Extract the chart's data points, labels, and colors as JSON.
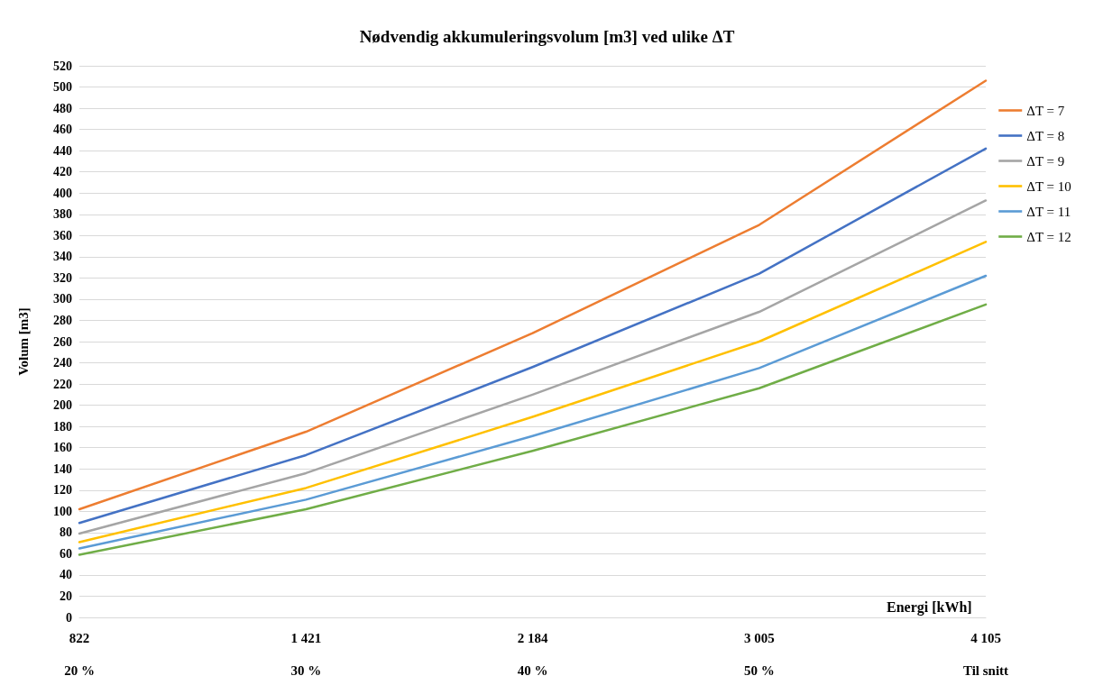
{
  "chart_data": {
    "type": "line",
    "title": "Nødvendig akkumuleringsvolum [m3] ved ulike ΔT",
    "xlabel": "Energi [kWh]",
    "ylabel": "Volum [m3]",
    "categories": [
      "822\n\n20 %",
      "1 421\n\n30 %",
      "2 184\n\n40 %",
      "3 005\n\n50 %",
      "4 105\n\nTil snitt"
    ],
    "series": [
      {
        "name": "ΔT = 7",
        "color": "#ed7d31",
        "values": [
          102,
          175,
          268,
          370,
          506
        ]
      },
      {
        "name": "ΔT = 8",
        "color": "#4472c4",
        "values": [
          89,
          153,
          236,
          324,
          442
        ]
      },
      {
        "name": "ΔT = 9",
        "color": "#a5a5a5",
        "values": [
          79,
          136,
          210,
          288,
          393
        ]
      },
      {
        "name": "ΔT = 10",
        "color": "#ffc000",
        "values": [
          71,
          122,
          189,
          260,
          354
        ]
      },
      {
        "name": "ΔT = 11",
        "color": "#5b9bd5",
        "values": [
          65,
          111,
          171,
          235,
          322
        ]
      },
      {
        "name": "ΔT = 12",
        "color": "#70ad47",
        "values": [
          59,
          102,
          157,
          216,
          295
        ]
      }
    ],
    "ylim": [
      0,
      520
    ],
    "yticks": [
      0,
      20,
      40,
      60,
      80,
      100,
      120,
      140,
      160,
      180,
      200,
      220,
      240,
      260,
      280,
      300,
      320,
      340,
      360,
      380,
      400,
      420,
      440,
      460,
      480,
      500,
      520
    ],
    "grid": "y",
    "legend": "right",
    "marker": "none",
    "line_style": "solid"
  }
}
